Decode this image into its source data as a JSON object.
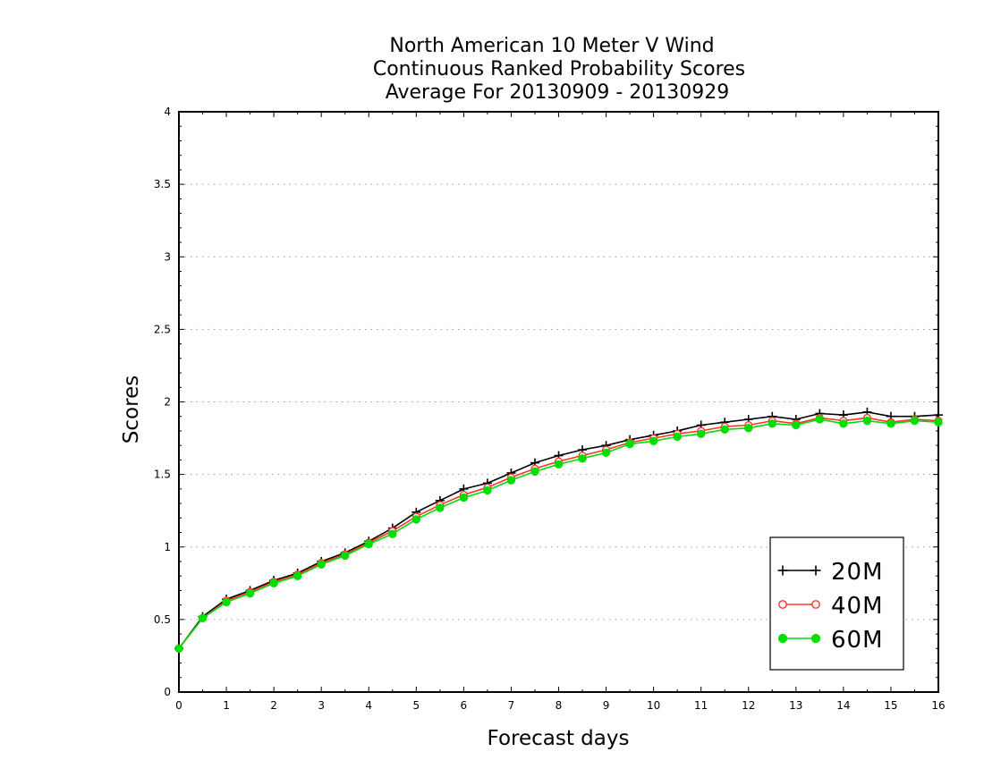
{
  "chart_data": {
    "type": "line",
    "title_lines": [
      "North American 10 Meter V Wind",
      "Continuous Ranked Probability Scores",
      "Average For 20130909 - 20130929"
    ],
    "xlabel": "Forecast days",
    "ylabel": "Scores",
    "xlim": [
      0,
      16
    ],
    "ylim": [
      0,
      4
    ],
    "x_ticks": [
      0,
      1,
      2,
      3,
      4,
      5,
      6,
      7,
      8,
      9,
      10,
      11,
      12,
      13,
      14,
      15,
      16
    ],
    "y_ticks": [
      0,
      0.5,
      1,
      1.5,
      2,
      2.5,
      3,
      3.5,
      4
    ],
    "y_tick_labels": [
      "0",
      "0.5",
      "1",
      "1.5",
      "2",
      "2.5",
      "3",
      "3.5",
      "4"
    ],
    "grid": "horizontal dotted",
    "legend_position": "bottom-right",
    "x": [
      0,
      0.5,
      1,
      1.5,
      2,
      2.5,
      3,
      3.5,
      4,
      4.5,
      5,
      5.5,
      6,
      6.5,
      7,
      7.5,
      8,
      8.5,
      9,
      9.5,
      10,
      10.5,
      11,
      11.5,
      12,
      12.5,
      13,
      13.5,
      14,
      14.5,
      15,
      15.5,
      16
    ],
    "series": [
      {
        "name": "20M",
        "color": "#000000",
        "marker": "plus",
        "values": [
          0.3,
          0.52,
          0.64,
          0.7,
          0.77,
          0.82,
          0.9,
          0.96,
          1.04,
          1.13,
          1.24,
          1.32,
          1.4,
          1.44,
          1.51,
          1.58,
          1.63,
          1.67,
          1.7,
          1.74,
          1.77,
          1.8,
          1.84,
          1.86,
          1.88,
          1.9,
          1.88,
          1.92,
          1.91,
          1.93,
          1.9,
          1.9,
          1.91
        ]
      },
      {
        "name": "40M",
        "color": "#ff3333",
        "marker": "open-circle",
        "values": [
          0.3,
          0.51,
          0.63,
          0.69,
          0.76,
          0.81,
          0.89,
          0.95,
          1.03,
          1.11,
          1.21,
          1.29,
          1.36,
          1.41,
          1.48,
          1.54,
          1.59,
          1.63,
          1.67,
          1.72,
          1.75,
          1.78,
          1.8,
          1.83,
          1.84,
          1.87,
          1.85,
          1.89,
          1.87,
          1.89,
          1.86,
          1.88,
          1.87
        ]
      },
      {
        "name": "60M",
        "color": "#00dd00",
        "marker": "filled-circle",
        "values": [
          0.3,
          0.51,
          0.62,
          0.68,
          0.75,
          0.8,
          0.88,
          0.94,
          1.02,
          1.09,
          1.19,
          1.27,
          1.34,
          1.39,
          1.46,
          1.52,
          1.57,
          1.61,
          1.65,
          1.71,
          1.73,
          1.76,
          1.78,
          1.81,
          1.82,
          1.85,
          1.84,
          1.88,
          1.85,
          1.87,
          1.85,
          1.87,
          1.86
        ]
      }
    ]
  }
}
